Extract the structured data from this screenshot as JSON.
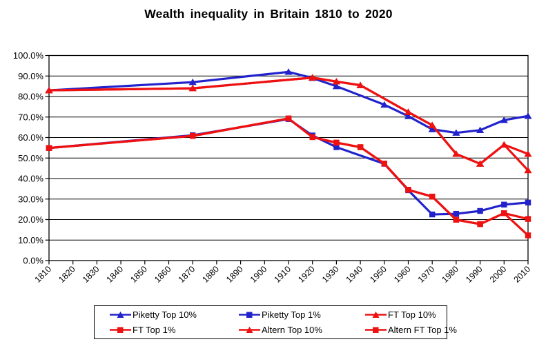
{
  "title": "Wealth inequality in Britain 1810 to 2020",
  "colors": {
    "piketty_blue": "#2222CC",
    "ft_red": "#EE1111",
    "grid": "#000000",
    "background": "#FFFFFF"
  },
  "chart_data": {
    "type": "line",
    "title": "Wealth inequality in Britain 1810 to 2020",
    "xlabel": "",
    "ylabel": "",
    "xlim": [
      1810,
      2010
    ],
    "ylim": [
      0,
      100
    ],
    "x_ticks": [
      1810,
      1820,
      1830,
      1840,
      1850,
      1860,
      1870,
      1880,
      1890,
      1900,
      1910,
      1920,
      1930,
      1940,
      1950,
      1960,
      1970,
      1980,
      1990,
      2000,
      2010
    ],
    "y_tick_labels": [
      "0.0%",
      "10.0%",
      "20.0%",
      "30.0%",
      "40.0%",
      "50.0%",
      "60.0%",
      "70.0%",
      "80.0%",
      "90.0%",
      "100.0%"
    ],
    "grid": "horizontal",
    "legend_position": "bottom",
    "series": [
      {
        "name": "Piketty Top 10%",
        "color": "#2222CC",
        "marker": "triangle",
        "points": [
          [
            1810,
            83
          ],
          [
            1870,
            87
          ],
          [
            1910,
            92
          ],
          [
            1920,
            89
          ],
          [
            1930,
            85
          ],
          [
            1950,
            76
          ],
          [
            1960,
            70.4
          ],
          [
            1970,
            64
          ],
          [
            1980,
            62.3
          ],
          [
            1990,
            63.6
          ],
          [
            2000,
            68.5
          ],
          [
            2010,
            70.5
          ]
        ]
      },
      {
        "name": "Piketty Top 1%",
        "color": "#2222CC",
        "marker": "square",
        "points": [
          [
            1810,
            54.9
          ],
          [
            1870,
            61.1
          ],
          [
            1910,
            69
          ],
          [
            1920,
            61
          ],
          [
            1930,
            55.3
          ],
          [
            1950,
            47.2
          ],
          [
            1960,
            34.3
          ],
          [
            1970,
            22.5
          ],
          [
            1980,
            22.8
          ],
          [
            1990,
            24.2
          ],
          [
            2000,
            27.3
          ],
          [
            2010,
            28.3
          ]
        ]
      },
      {
        "name": "FT Top 10%",
        "color": "#EE1111",
        "marker": "triangle",
        "points": [
          [
            1810,
            83
          ],
          [
            1870,
            84
          ],
          [
            1920,
            89.2
          ],
          [
            1930,
            87.3
          ],
          [
            1940,
            85.5
          ],
          [
            1960,
            72.4
          ],
          [
            1970,
            66
          ],
          [
            1980,
            52
          ],
          [
            1990,
            47.2
          ],
          [
            2000,
            56.5
          ],
          [
            2010,
            44
          ]
        ]
      },
      {
        "name": "FT Top 1%",
        "color": "#EE1111",
        "marker": "square",
        "points": [
          [
            1810,
            54.9
          ],
          [
            1870,
            60.8
          ],
          [
            1910,
            69.3
          ],
          [
            1920,
            60.2
          ],
          [
            1930,
            57.5
          ],
          [
            1940,
            55.3
          ],
          [
            1950,
            47.3
          ],
          [
            1960,
            34.5
          ],
          [
            1970,
            31.2
          ],
          [
            1980,
            19.9
          ],
          [
            1990,
            17.8
          ],
          [
            2000,
            23.1
          ],
          [
            2010,
            12.3
          ]
        ]
      },
      {
        "name": "Altern Top 10%",
        "color": "#EE1111",
        "marker": "triangle",
        "points": [
          [
            1810,
            83
          ],
          [
            1870,
            84
          ],
          [
            1920,
            89.2
          ],
          [
            1930,
            87.3
          ],
          [
            1940,
            85.5
          ],
          [
            1960,
            72.4
          ],
          [
            1970,
            66
          ],
          [
            1980,
            52
          ],
          [
            1990,
            47.2
          ],
          [
            2000,
            56.5
          ],
          [
            2010,
            52
          ]
        ]
      },
      {
        "name": "Altern FT Top 1%",
        "color": "#EE1111",
        "marker": "square",
        "points": [
          [
            1810,
            54.9
          ],
          [
            1870,
            60.8
          ],
          [
            1910,
            69.3
          ],
          [
            1920,
            60.2
          ],
          [
            1930,
            57.5
          ],
          [
            1940,
            55.3
          ],
          [
            1950,
            47.3
          ],
          [
            1960,
            34.5
          ],
          [
            1970,
            31.2
          ],
          [
            1980,
            19.9
          ],
          [
            1990,
            17.8
          ],
          [
            2000,
            23.1
          ],
          [
            2010,
            20.3
          ]
        ]
      }
    ]
  }
}
